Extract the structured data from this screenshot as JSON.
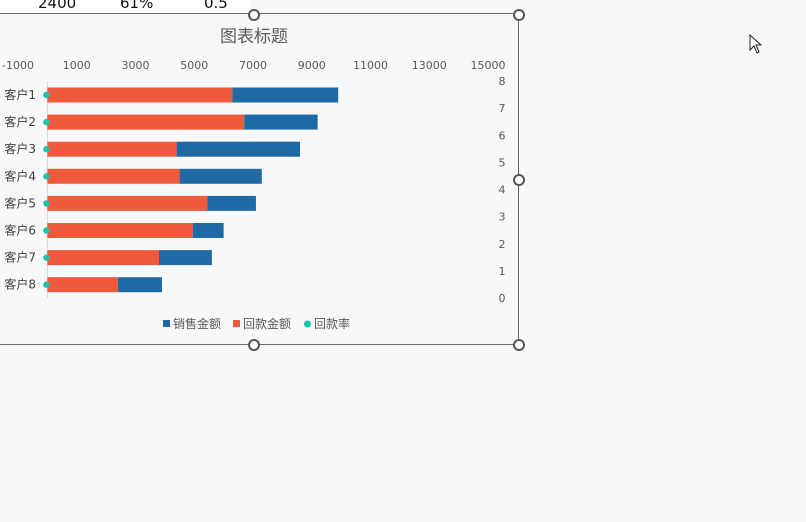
{
  "sheet": {
    "cells": [
      "2400",
      "61%",
      "0.5"
    ]
  },
  "chart_data": {
    "type": "bar",
    "orientation": "horizontal",
    "stacked": true,
    "title": "图表标题",
    "categories": [
      "客户1",
      "客户2",
      "客户3",
      "客户4",
      "客户5",
      "客户6",
      "客户7",
      "客户8"
    ],
    "series": [
      {
        "name": "回款金额",
        "color": "#f05a3c",
        "values": [
          6300,
          6700,
          4400,
          4500,
          5450,
          4950,
          3800,
          2400
        ]
      },
      {
        "name": "销售金额",
        "color": "#1f6aa5",
        "values": [
          3600,
          2500,
          4200,
          2800,
          1650,
          1050,
          1800,
          1500
        ]
      },
      {
        "name": "回款率",
        "color": "#1ec2b0",
        "type": "scatter",
        "values": [
          0.5,
          0.5,
          0.5,
          0.5,
          0.5,
          0.5,
          0.5,
          0.5
        ]
      }
    ],
    "x_axis": {
      "min": -1000,
      "max": 15000,
      "ticks": [
        -1000,
        1000,
        3000,
        5000,
        7000,
        9000,
        11000,
        13000,
        15000
      ]
    },
    "y2_axis": {
      "min": 0,
      "max": 8,
      "ticks": [
        0,
        1,
        2,
        3,
        4,
        5,
        6,
        7,
        8
      ]
    },
    "legend": {
      "position": "bottom",
      "items": [
        "销售金额",
        "回款金额",
        "回款率"
      ]
    },
    "grid": false
  }
}
